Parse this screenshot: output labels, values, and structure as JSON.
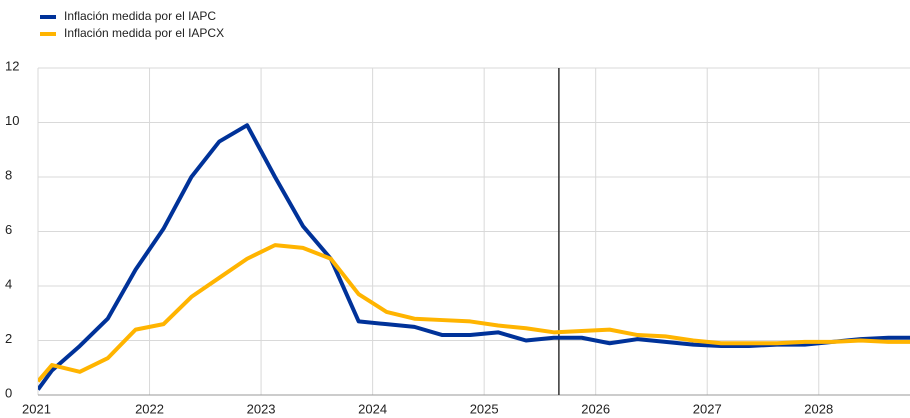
{
  "chart_data": {
    "type": "line",
    "x": [
      2021.0,
      2021.125,
      2021.375,
      2021.625,
      2021.875,
      2022.125,
      2022.375,
      2022.625,
      2022.875,
      2023.125,
      2023.375,
      2023.625,
      2023.875,
      2024.125,
      2024.375,
      2024.625,
      2024.875,
      2025.125,
      2025.375,
      2025.625,
      2025.875,
      2026.125,
      2026.375,
      2026.625,
      2026.875,
      2027.125,
      2027.375,
      2027.625,
      2027.875,
      2028.125,
      2028.375,
      2028.625,
      2028.875
    ],
    "series": [
      {
        "name": "Inflación medida por el IAPC",
        "color": "#003299",
        "values": [
          0.2,
          0.9,
          1.8,
          2.8,
          4.6,
          6.1,
          8.0,
          9.3,
          9.9,
          8.0,
          6.2,
          5.0,
          2.7,
          2.6,
          2.5,
          2.2,
          2.2,
          2.3,
          2.0,
          2.1,
          2.1,
          1.9,
          2.05,
          1.95,
          1.85,
          1.8,
          1.8,
          1.85,
          1.85,
          1.95,
          2.05,
          2.1,
          2.1
        ]
      },
      {
        "name": "Inflación medida por el IAPCX",
        "color": "#ffb400",
        "values": [
          0.5,
          1.1,
          0.85,
          1.35,
          2.4,
          2.6,
          3.6,
          4.3,
          5.0,
          5.5,
          5.4,
          5.0,
          3.7,
          3.05,
          2.8,
          2.75,
          2.7,
          2.55,
          2.45,
          2.3,
          2.35,
          2.4,
          2.2,
          2.15,
          2.0,
          1.9,
          1.9,
          1.9,
          1.95,
          1.95,
          2.0,
          1.95,
          1.95
        ]
      }
    ],
    "xlim": [
      2021,
      2028.8
    ],
    "xticks": [
      2021,
      2022,
      2023,
      2024,
      2025,
      2026,
      2027,
      2028
    ],
    "ylim": [
      0,
      12
    ],
    "yticks": [
      0,
      2,
      4,
      6,
      8,
      10,
      12
    ],
    "grid": true,
    "vline": 2025.67,
    "vline_color": "#333333",
    "legend": "top-left"
  }
}
